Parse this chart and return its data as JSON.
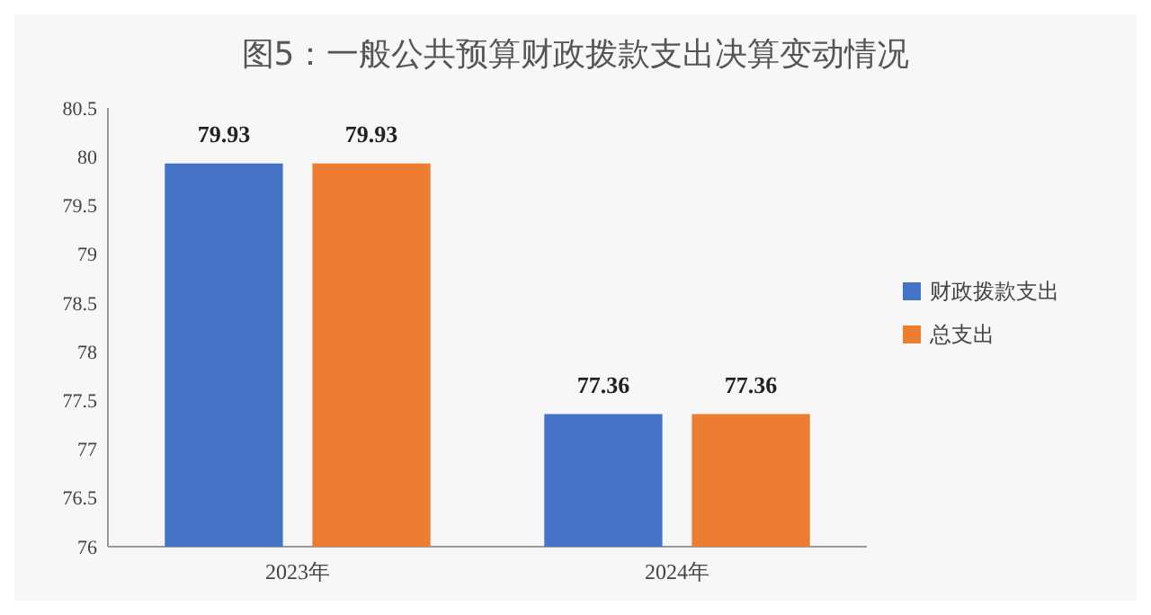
{
  "chart_data": {
    "type": "bar",
    "title": "图5：一般公共预算财政拨款支出决算变动情况",
    "categories": [
      "2023年",
      "2024年"
    ],
    "series": [
      {
        "name": "财政拨款支出",
        "color": "#4472c4",
        "values": [
          79.93,
          77.36
        ]
      },
      {
        "name": "总支出",
        "color": "#ed7d31",
        "values": [
          79.93,
          77.36
        ]
      }
    ],
    "ylim": [
      76,
      80.5
    ],
    "yticks": [
      76,
      76.5,
      77,
      77.5,
      78,
      78.5,
      79,
      79.5,
      80,
      80.5
    ],
    "data_labels": true,
    "legend": "right",
    "grid": false
  }
}
